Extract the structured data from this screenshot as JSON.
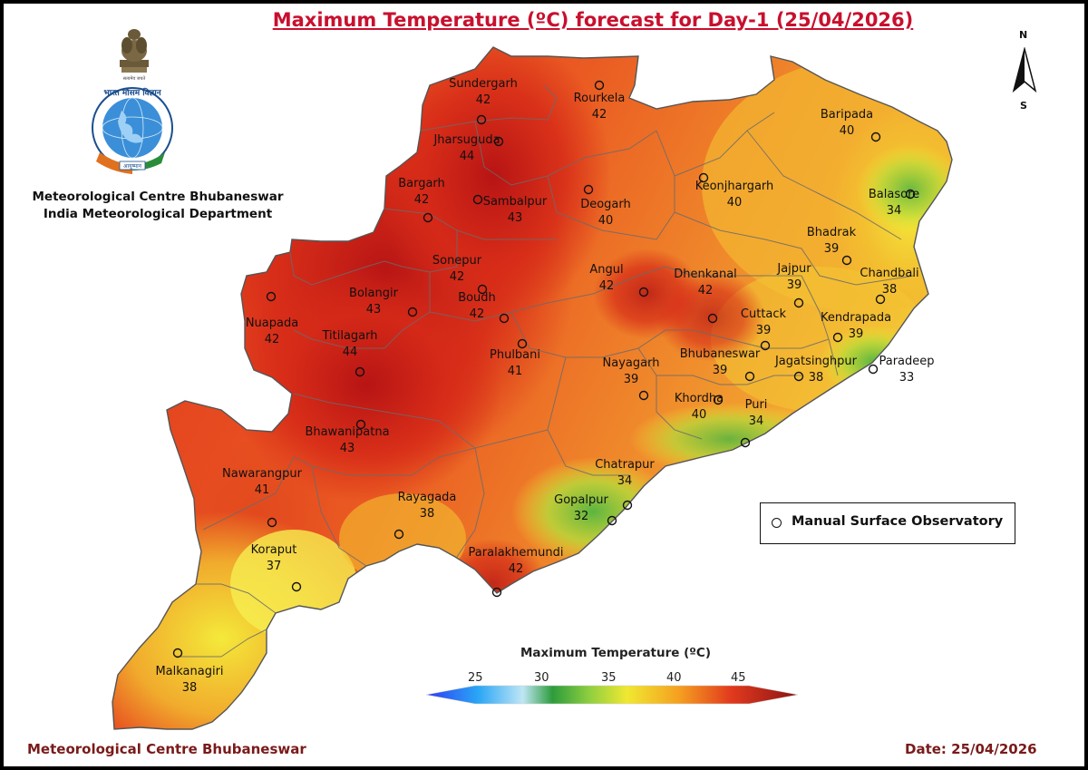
{
  "title": "Maximum Temperature (ºC) forecast for Day-1 (25/04/2026)",
  "organization": {
    "line1": "Meteorological Centre Bhubaneswar",
    "line2": "India Meteorological Department",
    "logo_text": "भारत मौसम विज्ञान विभाग INDIA METEOROLOGICAL DEPARTMENT"
  },
  "compass": {
    "north": "N",
    "south": "S"
  },
  "legend": {
    "marker_label": "Manual Surface Observatory"
  },
  "colorbar": {
    "title": "Maximum Temperature (ºC)",
    "ticks": [
      "25",
      "30",
      "35",
      "40",
      "45"
    ],
    "colors": [
      "#2f3cf5",
      "#2aa6f5",
      "#bfe6f5",
      "#2d9c3c",
      "#8fcf40",
      "#f0e832",
      "#f5a020",
      "#e23a1e",
      "#8b1414"
    ]
  },
  "stations": [
    {
      "name": "Sundergarh",
      "temp": "42"
    },
    {
      "name": "Rourkela",
      "temp": "42"
    },
    {
      "name": "Jharsuguda",
      "temp": "44"
    },
    {
      "name": "Bargarh",
      "temp": "42"
    },
    {
      "name": "Sambalpur",
      "temp": "43"
    },
    {
      "name": "Deogarh",
      "temp": "40"
    },
    {
      "name": "Keonjhargarh",
      "temp": "40"
    },
    {
      "name": "Baripada",
      "temp": "40"
    },
    {
      "name": "Balasore",
      "temp": "34"
    },
    {
      "name": "Bhadrak",
      "temp": "39"
    },
    {
      "name": "Chandbali",
      "temp": "38"
    },
    {
      "name": "Sonepur",
      "temp": "42"
    },
    {
      "name": "Bolangir",
      "temp": "43"
    },
    {
      "name": "Boudh",
      "temp": "42"
    },
    {
      "name": "Angul",
      "temp": "42"
    },
    {
      "name": "Dhenkanal",
      "temp": "42"
    },
    {
      "name": "Jajpur",
      "temp": "39"
    },
    {
      "name": "Cuttack",
      "temp": "39"
    },
    {
      "name": "Kendrapada",
      "temp": "39"
    },
    {
      "name": "Nuapada",
      "temp": "42"
    },
    {
      "name": "Titilagarh",
      "temp": "44"
    },
    {
      "name": "Phulbani",
      "temp": "41"
    },
    {
      "name": "Nayagarh",
      "temp": "39"
    },
    {
      "name": "Bhubaneswar",
      "temp": "39"
    },
    {
      "name": "Jagatsinghpur",
      "temp": "38"
    },
    {
      "name": "Paradeep",
      "temp": "33"
    },
    {
      "name": "Khordha",
      "temp": "40"
    },
    {
      "name": "Puri",
      "temp": "34"
    },
    {
      "name": "Bhawanipatna",
      "temp": "43"
    },
    {
      "name": "Chatrapur",
      "temp": "34"
    },
    {
      "name": "Gopalpur",
      "temp": "32"
    },
    {
      "name": "Nawarangpur",
      "temp": "41"
    },
    {
      "name": "Rayagada",
      "temp": "38"
    },
    {
      "name": "Koraput",
      "temp": "37"
    },
    {
      "name": "Paralakhemundi",
      "temp": "42"
    },
    {
      "name": "Malkanagiri",
      "temp": "38"
    }
  ],
  "footer": {
    "left": "Meteorological Centre Bhubaneswar",
    "right": "Date: 25/04/2026"
  }
}
